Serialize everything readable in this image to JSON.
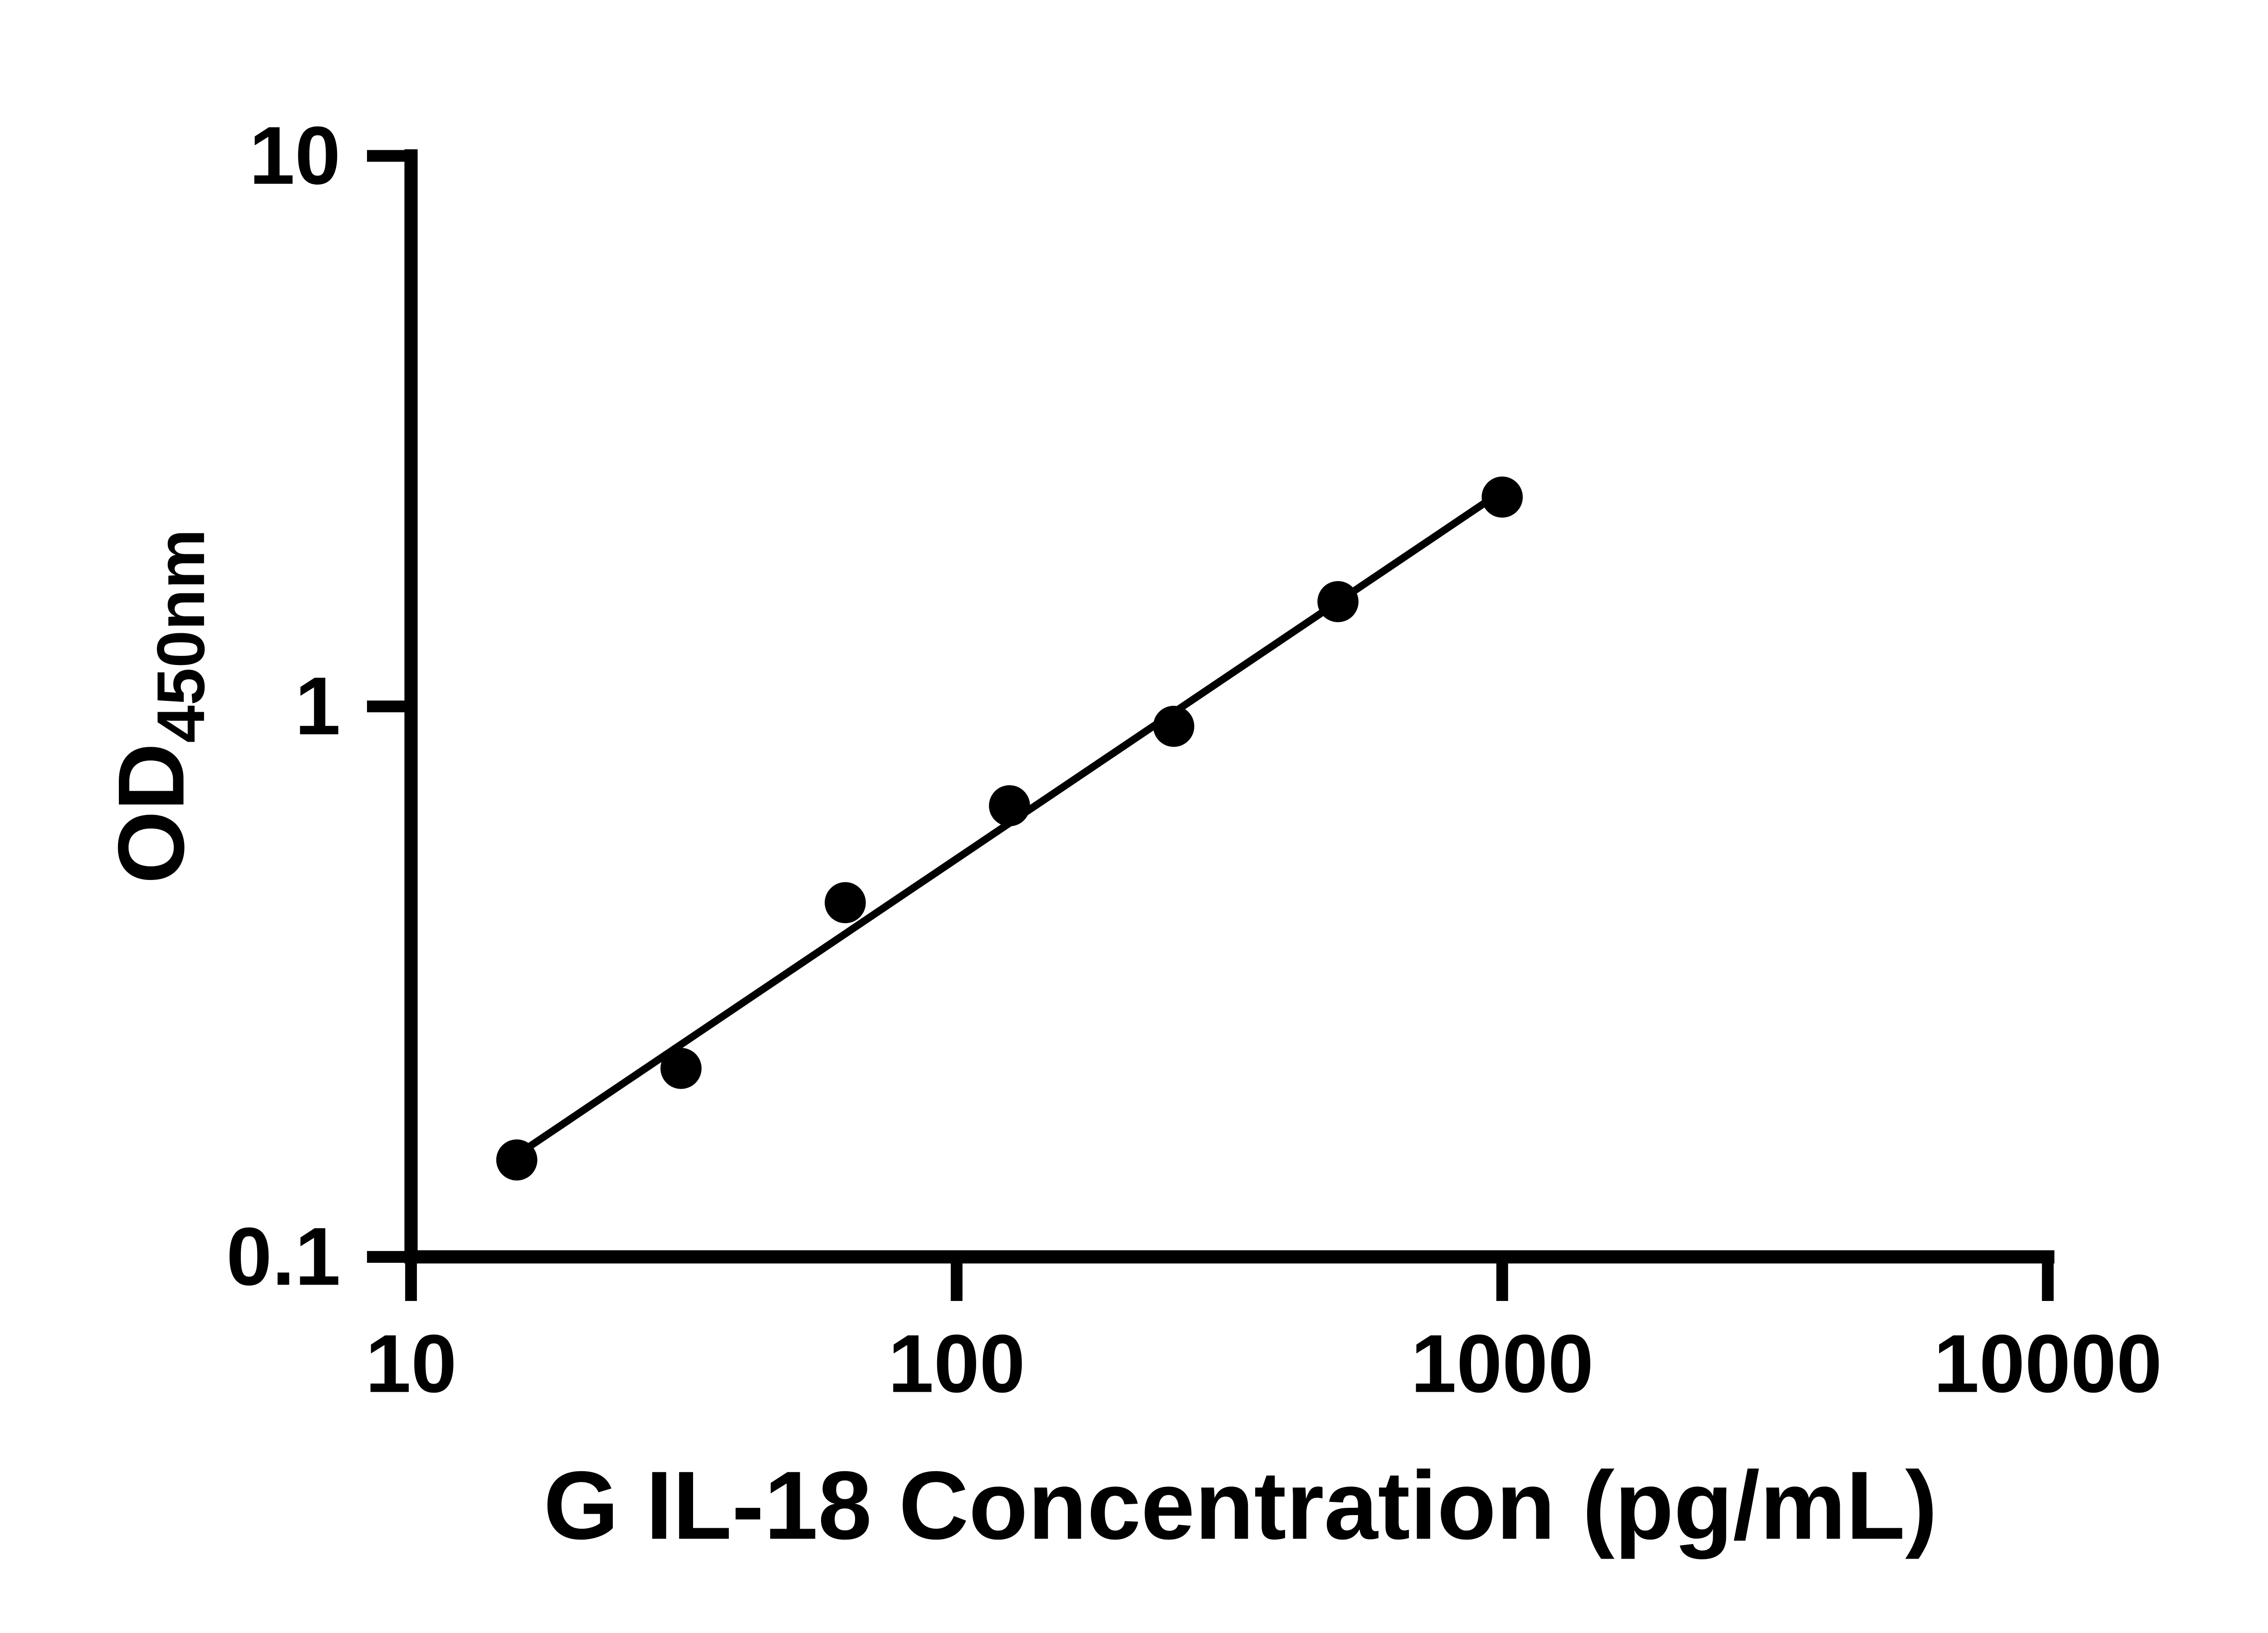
{
  "chart_data": {
    "type": "scatter",
    "title": "",
    "xlabel": "G IL-18 Concentration (pg/mL)",
    "ylabel_main": "OD",
    "ylabel_sub": "450nm",
    "x": [
      15.625,
      31.25,
      62.5,
      125,
      250,
      500,
      1000
    ],
    "y": [
      0.15,
      0.22,
      0.44,
      0.66,
      0.92,
      1.55,
      2.4
    ],
    "xscale": "log",
    "yscale": "log",
    "xlim": [
      10,
      10000
    ],
    "ylim": [
      0.1,
      10
    ],
    "x_ticks": [
      10,
      100,
      1000,
      10000
    ],
    "x_tick_labels": [
      "10",
      "100",
      "1000",
      "10000"
    ],
    "y_ticks": [
      0.1,
      1,
      10
    ],
    "y_tick_labels": [
      "0.1",
      "1",
      "10"
    ],
    "trendline": true,
    "grid": false,
    "legend": "none",
    "marker_color": "#000000",
    "line_color": "#000000",
    "background": "#ffffff"
  }
}
